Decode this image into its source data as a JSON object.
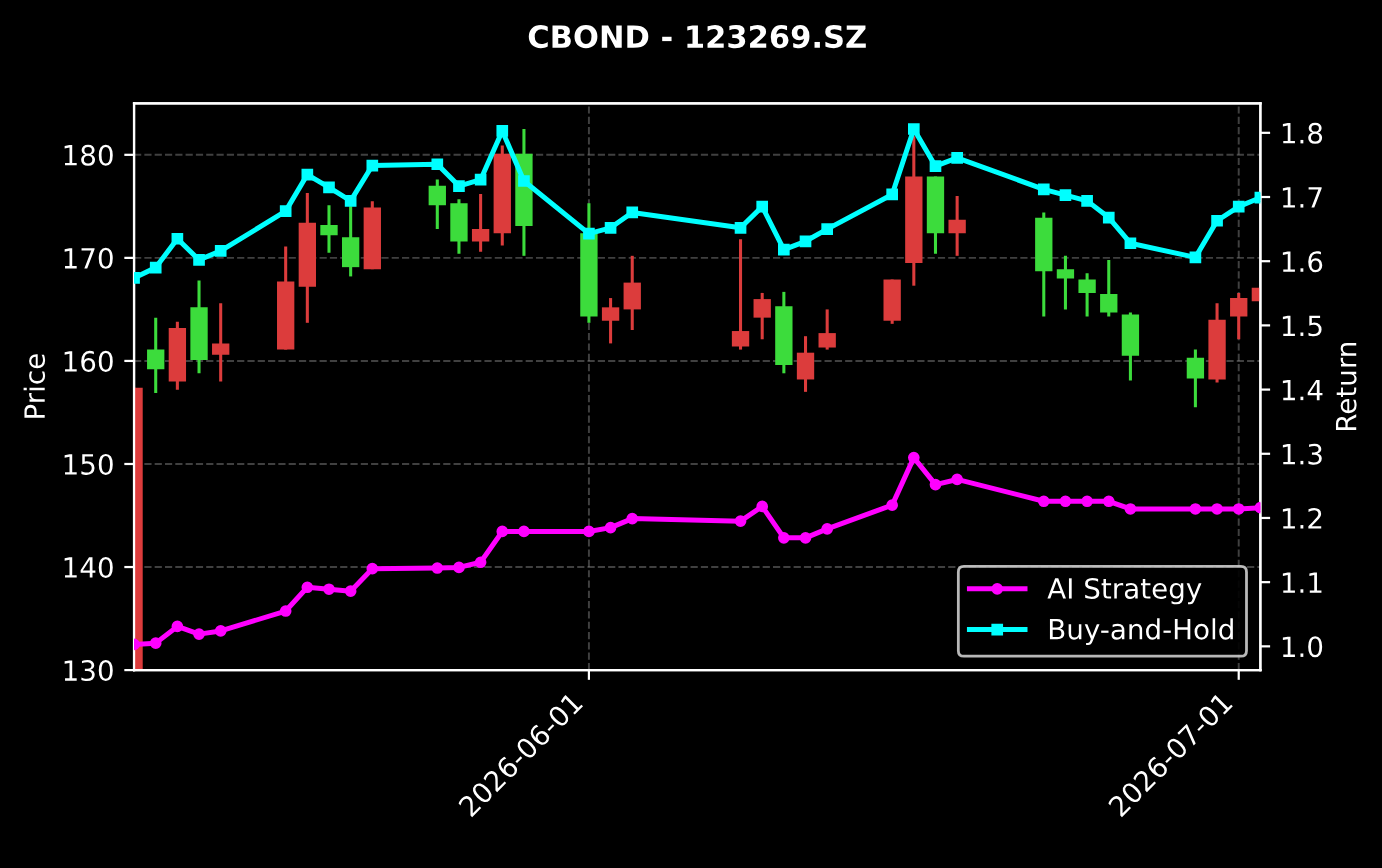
{
  "chart_data": {
    "type": "candlestick",
    "title": "CBOND - 123269.SZ",
    "ylabel": "Price",
    "y2label": "Return",
    "x": [
      "2026-05-11",
      "2026-05-12",
      "2026-05-13",
      "2026-05-14",
      "2026-05-15",
      "2026-05-18",
      "2026-05-19",
      "2026-05-20",
      "2026-05-21",
      "2026-05-22",
      "2026-05-25",
      "2026-05-26",
      "2026-05-27",
      "2026-05-28",
      "2026-05-29",
      "2026-06-01",
      "2026-06-02",
      "2026-06-03",
      "2026-06-08",
      "2026-06-09",
      "2026-06-10",
      "2026-06-11",
      "2026-06-12",
      "2026-06-15",
      "2026-06-16",
      "2026-06-17",
      "2026-06-18",
      "2026-06-22",
      "2026-06-23",
      "2026-06-24",
      "2026-06-25",
      "2026-06-26",
      "2026-06-29",
      "2026-06-30",
      "2026-07-01",
      "2026-07-02"
    ],
    "ohlc": [
      [
        130,
        157.4,
        130,
        157.4
      ],
      [
        161.1,
        164.2,
        156.9,
        159.2
      ],
      [
        158.0,
        163.8,
        157.2,
        163.2
      ],
      [
        165.2,
        167.8,
        158.8,
        160.1
      ],
      [
        160.6,
        165.6,
        158.0,
        161.7
      ],
      [
        161.1,
        171.1,
        161.1,
        167.7
      ],
      [
        167.2,
        176.3,
        163.7,
        173.4
      ],
      [
        173.2,
        175.1,
        170.5,
        172.2
      ],
      [
        172.0,
        175.0,
        168.2,
        169.1
      ],
      [
        168.9,
        175.5,
        168.9,
        174.9
      ],
      [
        177.0,
        177.6,
        172.8,
        175.1
      ],
      [
        175.3,
        175.7,
        170.4,
        171.6
      ],
      [
        171.6,
        176.2,
        170.6,
        172.8
      ],
      [
        172.4,
        180.9,
        171.2,
        180.1
      ],
      [
        180.1,
        182.5,
        170.2,
        173.1
      ],
      [
        172.4,
        175.3,
        163.7,
        164.3
      ],
      [
        163.9,
        166.1,
        161.7,
        165.2
      ],
      [
        165.0,
        170.2,
        163.0,
        167.6
      ],
      [
        161.4,
        171.8,
        161.1,
        162.9
      ],
      [
        164.2,
        166.6,
        162.1,
        166.0
      ],
      [
        165.3,
        166.7,
        158.8,
        159.6
      ],
      [
        158.2,
        162.4,
        157.0,
        160.8
      ],
      [
        161.3,
        165.0,
        161.1,
        162.7
      ],
      [
        163.9,
        167.9,
        163.6,
        167.9
      ],
      [
        169.5,
        181.8,
        167.3,
        177.9
      ],
      [
        177.9,
        177.9,
        170.4,
        172.4
      ],
      [
        172.4,
        176.0,
        170.2,
        173.7
      ],
      [
        173.9,
        174.4,
        164.3,
        168.7
      ],
      [
        168.9,
        170.2,
        165.0,
        168.0
      ],
      [
        167.9,
        168.5,
        164.3,
        166.6
      ],
      [
        166.5,
        169.8,
        164.3,
        164.7
      ],
      [
        164.5,
        164.7,
        158.1,
        160.5
      ],
      [
        160.3,
        161.1,
        155.5,
        158.3
      ],
      [
        158.2,
        165.6,
        157.9,
        164.0
      ],
      [
        164.3,
        166.6,
        162.1,
        166.1
      ],
      [
        165.8,
        167.1,
        165.8,
        167.1
      ]
    ],
    "colors": [
      "#dc3c3c",
      "#3cdc3c",
      "#dc3c3c",
      "#3cdc3c",
      "#dc3c3c",
      "#dc3c3c",
      "#dc3c3c",
      "#3cdc3c",
      "#3cdc3c",
      "#dc3c3c",
      "#3cdc3c",
      "#3cdc3c",
      "#dc3c3c",
      "#dc3c3c",
      "#3cdc3c",
      "#3cdc3c",
      "#dc3c3c",
      "#dc3c3c",
      "#dc3c3c",
      "#dc3c3c",
      "#3cdc3c",
      "#dc3c3c",
      "#dc3c3c",
      "#dc3c3c",
      "#dc3c3c",
      "#3cdc3c",
      "#dc3c3c",
      "#3cdc3c",
      "#3cdc3c",
      "#3cdc3c",
      "#3cdc3c",
      "#3cdc3c",
      "#3cdc3c",
      "#dc3c3c",
      "#dc3c3c",
      "#dc3c3c"
    ],
    "series": [
      {
        "name": "AI Strategy",
        "type": "line",
        "axis": "y2",
        "color": "#ff00ff",
        "marker": "circle",
        "values": [
          1.003,
          1.005,
          1.031,
          1.019,
          1.024,
          1.055,
          1.092,
          1.089,
          1.086,
          1.121,
          1.122,
          1.123,
          1.131,
          1.179,
          1.179,
          1.179,
          1.185,
          1.199,
          1.195,
          1.218,
          1.169,
          1.169,
          1.183,
          1.22,
          1.294,
          1.252,
          1.26,
          1.226,
          1.226,
          1.226,
          1.226,
          1.214,
          1.214,
          1.214,
          1.214,
          1.216
        ]
      },
      {
        "name": "Buy-and-Hold",
        "type": "line",
        "axis": "y2",
        "color": "#00ffff",
        "marker": "square",
        "values": [
          1.574,
          1.59,
          1.635,
          1.602,
          1.616,
          1.678,
          1.735,
          1.715,
          1.694,
          1.749,
          1.751,
          1.717,
          1.727,
          1.803,
          1.725,
          1.643,
          1.652,
          1.676,
          1.652,
          1.685,
          1.618,
          1.631,
          1.65,
          1.704,
          1.806,
          1.748,
          1.761,
          1.712,
          1.703,
          1.694,
          1.668,
          1.628,
          1.606,
          1.663,
          1.685,
          1.699
        ]
      }
    ],
    "xlim": [
      "2026-05-11",
      "2026-07-02"
    ],
    "xticks": [
      "2026-06-01",
      "2026-07-01"
    ],
    "ylim": [
      130,
      185
    ],
    "yticks": [
      130,
      140,
      150,
      160,
      170,
      180
    ],
    "y2lim": [
      0.963,
      1.846
    ],
    "y2ticks": [
      {
        "value": 1.0,
        "label": "1.0"
      },
      1.1,
      1.2,
      1.3,
      1.4,
      1.5,
      1.6,
      1.7,
      1.8
    ],
    "grid": true,
    "legend": "bottom right"
  }
}
